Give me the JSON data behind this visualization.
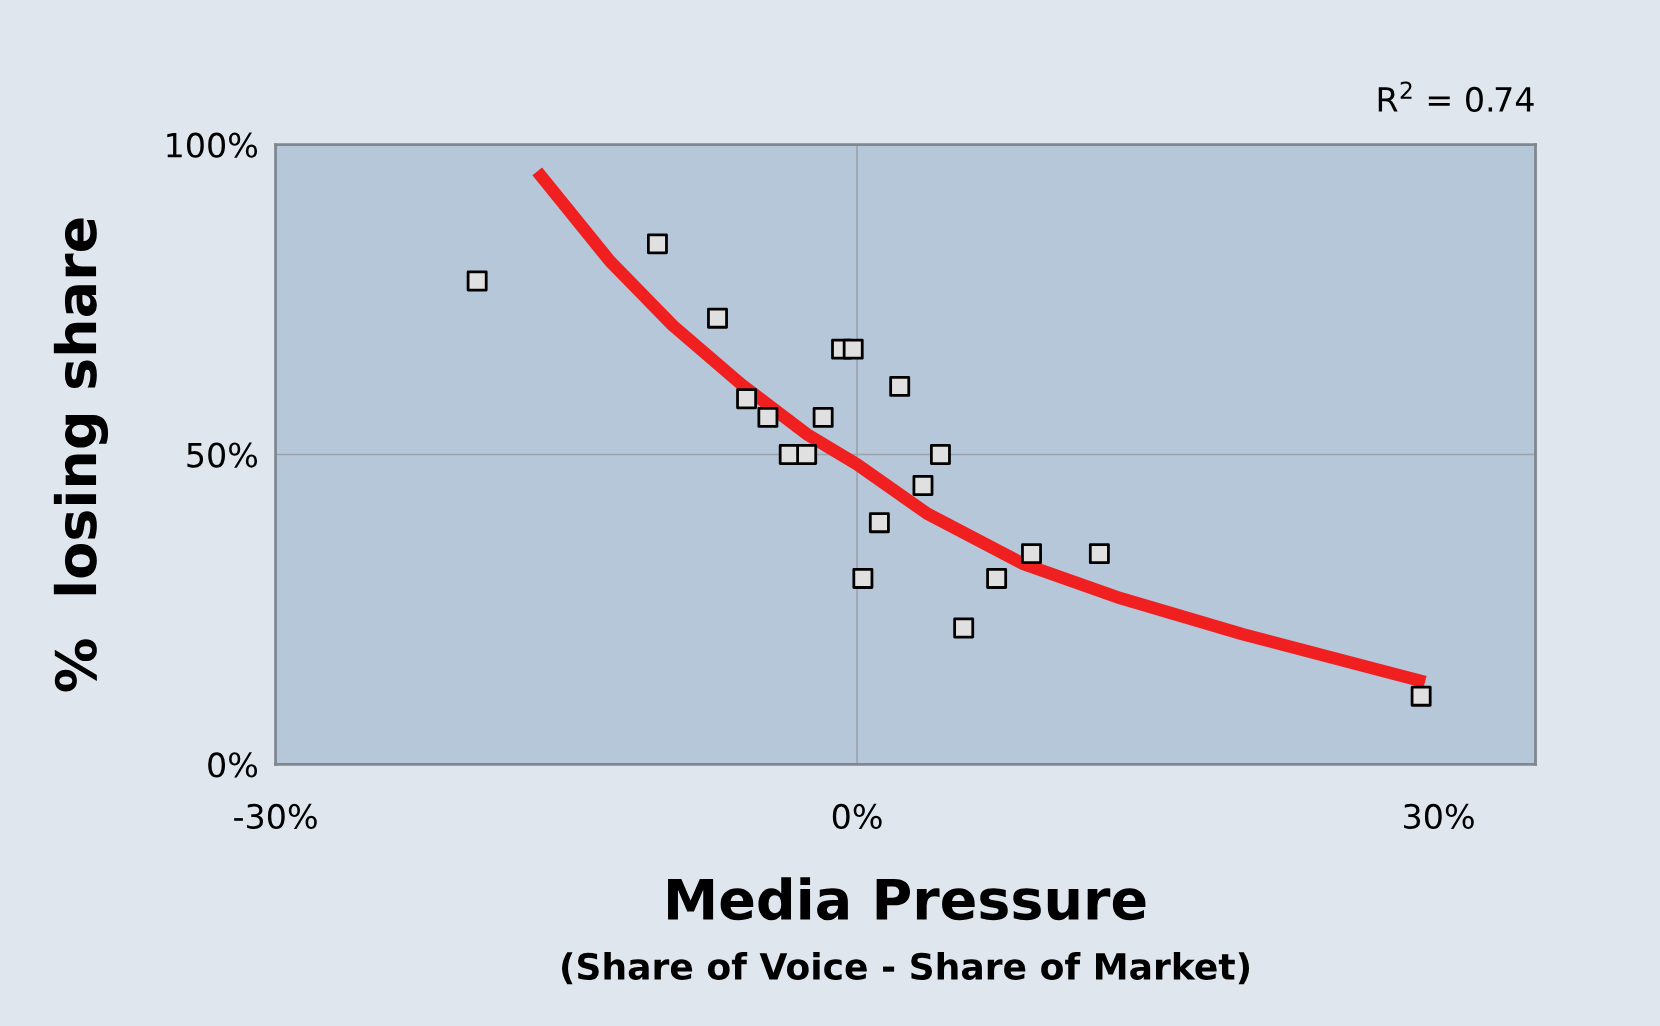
{
  "chart_data": {
    "type": "scatter",
    "xlabel": "Media Pressure",
    "ylabel": "%  losing share",
    "annotations": [
      "(Share of Voice - Share of Market)",
      "R$^{2}$ = 0.74"
    ],
    "xlim": [
      -30,
      35
    ],
    "ylim": [
      0,
      100
    ],
    "xticks": [
      {
        "value": -30,
        "label": "-30%"
      },
      {
        "value": 0,
        "label": "0%"
      },
      {
        "value": 30,
        "label": "30%"
      }
    ],
    "yticks": [
      {
        "value": 0,
        "label": "0%"
      },
      {
        "value": 50,
        "label": "50%"
      },
      {
        "value": 100,
        "label": "100%"
      }
    ],
    "grid": "y",
    "ref_lines": [
      {
        "axis": "x",
        "value": 0,
        "label": null,
        "color": "#9aa3ad"
      }
    ],
    "marker": "square",
    "series": [
      {
        "color": "#e0e0e0",
        "x": [
          -19.6,
          -10.3,
          -7.2,
          -5.7,
          -4.6,
          -3.5,
          -2.6,
          -1.75,
          -0.8,
          -0.2,
          2.2,
          4.3,
          3.4,
          1.15,
          0.3,
          7.2,
          5.5,
          9.0,
          12.5,
          29.1
        ],
        "values": [
          78,
          84,
          72,
          59,
          56,
          50,
          50,
          56,
          67,
          67,
          61,
          50,
          45,
          39,
          30,
          30,
          22,
          34,
          34,
          11
        ]
      },
      {
        "type": "line",
        "color": "#f02020",
        "marker": "none",
        "x": [
          -16.5,
          -12.75,
          -9.5,
          -6.0,
          -2.6,
          0,
          3.6,
          8.6,
          13.6,
          19.9,
          29.3
        ],
        "values": [
          95.7,
          81.2,
          70.8,
          61.4,
          53.3,
          48.4,
          40.5,
          32.3,
          26.8,
          21.0,
          13.3
        ]
      }
    ]
  }
}
